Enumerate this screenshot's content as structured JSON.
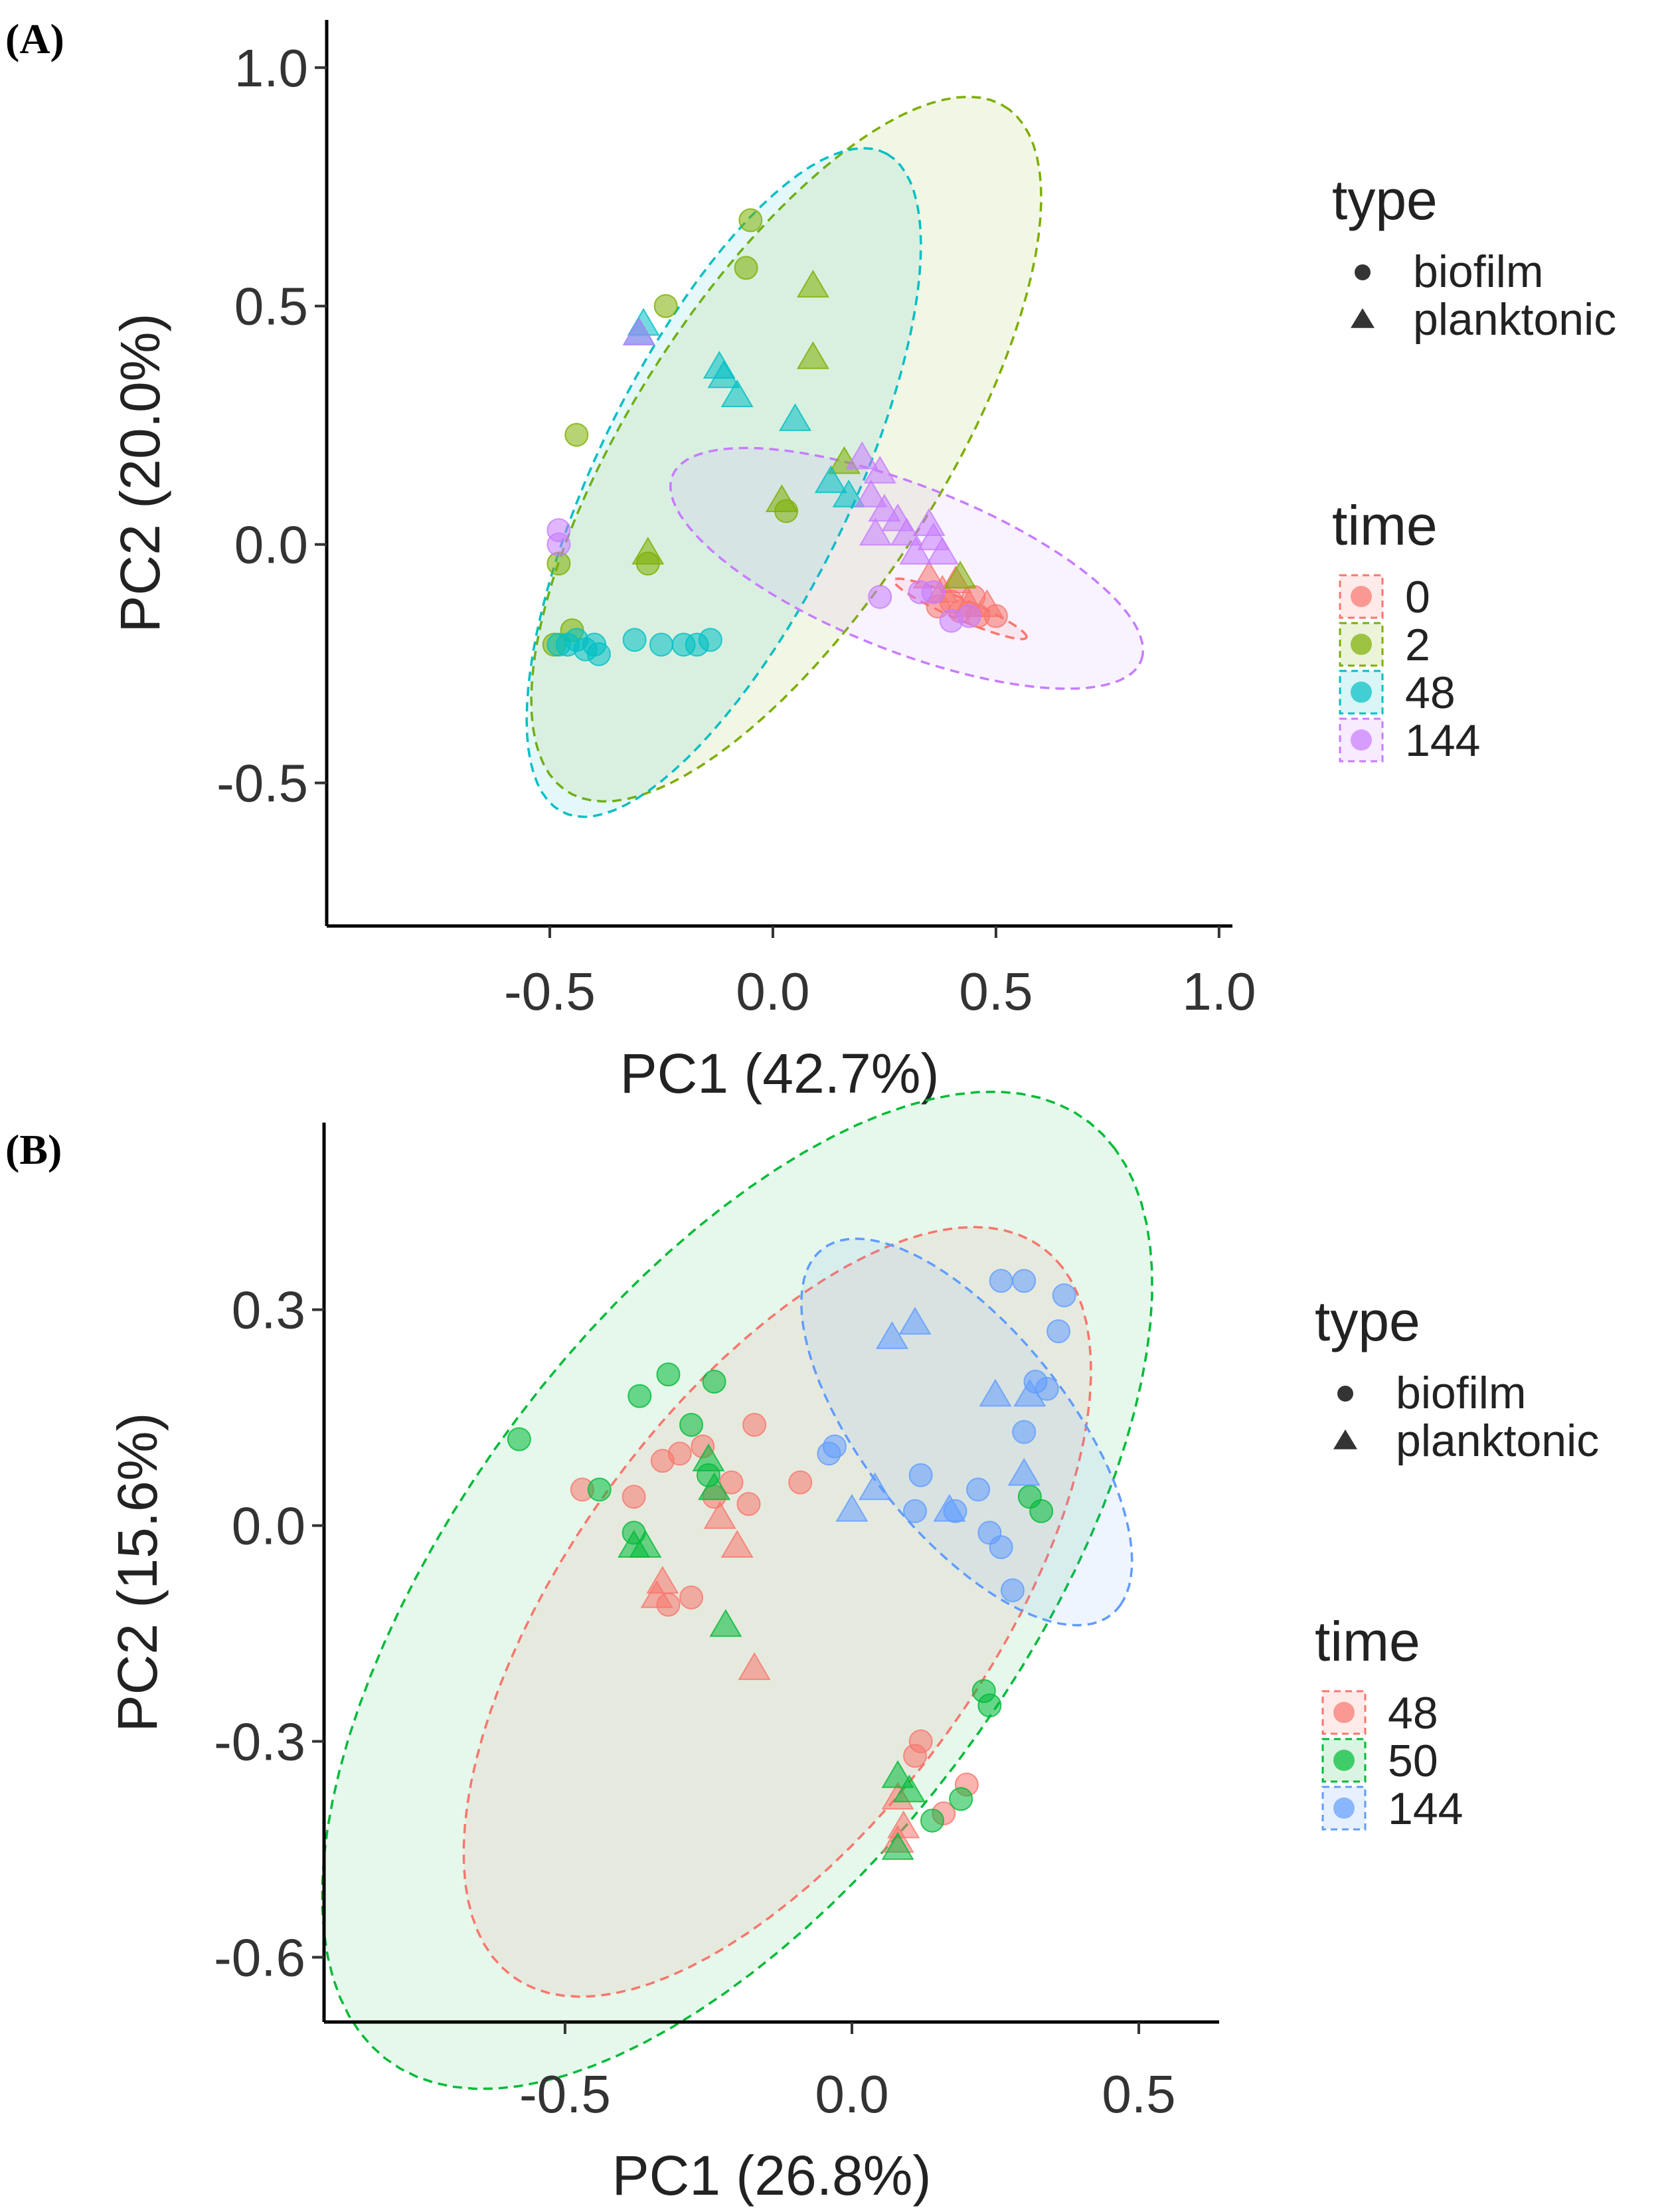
{
  "colors": {
    "red": "#F8766D",
    "olive": "#7CAE00",
    "teal": "#00BFC4",
    "purple": "#C77CFF",
    "green": "#00BA38",
    "blue": "#619CFF"
  },
  "chart_data": [
    {
      "type": "scatter",
      "panel_label": "(A)",
      "xlabel": "PC1 (42.7%)",
      "ylabel": "PC2 (20.0%)",
      "xlim": [
        -1.0,
        1.03
      ],
      "ylim": [
        -0.8,
        1.1
      ],
      "xticks": [
        -0.5,
        0.0,
        0.5,
        1.0
      ],
      "xtick_labels": [
        "-0.5",
        "0.0",
        "0.5",
        "1.0"
      ],
      "yticks": [
        -0.5,
        0.0,
        0.5,
        1.0
      ],
      "ytick_labels": [
        "-0.5",
        "0.0",
        "0.5",
        "1.0"
      ],
      "legend": {
        "type_title": "type",
        "type_entries": [
          {
            "label": "biofilm",
            "shape": "circle"
          },
          {
            "label": "planktonic",
            "shape": "triangle"
          }
        ],
        "time_title": "time",
        "time_entries": [
          {
            "label": "0",
            "color": "#F8766D"
          },
          {
            "label": "2",
            "color": "#7CAE00"
          },
          {
            "label": "48",
            "color": "#00BFC4"
          },
          {
            "label": "144",
            "color": "#C77CFF"
          }
        ]
      },
      "ellipses": [
        {
          "group": "2",
          "color": "#7CAE00",
          "cx": 0.03,
          "cy": 0.2,
          "rx": 0.87,
          "ry": 0.34,
          "angle": 55
        },
        {
          "group": "48",
          "color": "#00BFC4",
          "cx": -0.11,
          "cy": 0.13,
          "rx": 0.78,
          "ry": 0.28,
          "angle": 62
        },
        {
          "group": "144",
          "color": "#C77CFF",
          "cx": 0.3,
          "cy": -0.05,
          "rx": 0.56,
          "ry": 0.175,
          "angle": -20
        },
        {
          "group": "0",
          "color": "#F8766D",
          "cx": 0.42,
          "cy": -0.135,
          "rx": 0.16,
          "ry": 0.022,
          "angle": -22
        }
      ],
      "series": [
        {
          "name": "0",
          "color": "#F8766D",
          "points": [
            {
              "x": 0.35,
              "y": -0.07,
              "type": "planktonic"
            },
            {
              "x": 0.38,
              "y": -0.1,
              "type": "planktonic"
            },
            {
              "x": 0.4,
              "y": -0.12,
              "type": "biofilm"
            },
            {
              "x": 0.42,
              "y": -0.14,
              "type": "biofilm"
            },
            {
              "x": 0.44,
              "y": -0.13,
              "type": "planktonic"
            },
            {
              "x": 0.46,
              "y": -0.15,
              "type": "biofilm"
            },
            {
              "x": 0.48,
              "y": -0.13,
              "type": "planktonic"
            },
            {
              "x": 0.37,
              "y": -0.13,
              "type": "biofilm"
            },
            {
              "x": 0.41,
              "y": -0.08,
              "type": "planktonic"
            },
            {
              "x": 0.45,
              "y": -0.11,
              "type": "biofilm"
            },
            {
              "x": 0.5,
              "y": -0.15,
              "type": "biofilm"
            }
          ]
        },
        {
          "name": "2",
          "color": "#7CAE00",
          "points": [
            {
              "x": -0.05,
              "y": 0.68,
              "type": "biofilm"
            },
            {
              "x": -0.06,
              "y": 0.58,
              "type": "biofilm"
            },
            {
              "x": -0.24,
              "y": 0.5,
              "type": "biofilm"
            },
            {
              "x": 0.09,
              "y": 0.54,
              "type": "planktonic"
            },
            {
              "x": 0.09,
              "y": 0.39,
              "type": "planktonic"
            },
            {
              "x": -0.44,
              "y": 0.23,
              "type": "biofilm"
            },
            {
              "x": 0.16,
              "y": 0.17,
              "type": "planktonic"
            },
            {
              "x": 0.02,
              "y": 0.09,
              "type": "planktonic"
            },
            {
              "x": 0.03,
              "y": 0.07,
              "type": "biofilm"
            },
            {
              "x": -0.28,
              "y": -0.02,
              "type": "planktonic"
            },
            {
              "x": -0.28,
              "y": -0.04,
              "type": "biofilm"
            },
            {
              "x": -0.48,
              "y": -0.04,
              "type": "biofilm"
            },
            {
              "x": -0.45,
              "y": -0.18,
              "type": "biofilm"
            },
            {
              "x": -0.49,
              "y": -0.21,
              "type": "biofilm"
            },
            {
              "x": 0.42,
              "y": -0.07,
              "type": "planktonic"
            }
          ]
        },
        {
          "name": "48",
          "color": "#00BFC4",
          "points": [
            {
              "x": -0.29,
              "y": 0.46,
              "type": "planktonic"
            },
            {
              "x": -0.3,
              "y": 0.44,
              "type": "planktonic"
            },
            {
              "x": -0.12,
              "y": 0.37,
              "type": "planktonic"
            },
            {
              "x": -0.11,
              "y": 0.35,
              "type": "planktonic"
            },
            {
              "x": -0.08,
              "y": 0.31,
              "type": "planktonic"
            },
            {
              "x": 0.05,
              "y": 0.26,
              "type": "planktonic"
            },
            {
              "x": 0.13,
              "y": 0.13,
              "type": "planktonic"
            },
            {
              "x": 0.17,
              "y": 0.1,
              "type": "planktonic"
            },
            {
              "x": -0.48,
              "y": -0.21,
              "type": "biofilm"
            },
            {
              "x": -0.46,
              "y": -0.21,
              "type": "biofilm"
            },
            {
              "x": -0.44,
              "y": -0.2,
              "type": "biofilm"
            },
            {
              "x": -0.42,
              "y": -0.22,
              "type": "biofilm"
            },
            {
              "x": -0.4,
              "y": -0.21,
              "type": "biofilm"
            },
            {
              "x": -0.39,
              "y": -0.23,
              "type": "biofilm"
            },
            {
              "x": -0.31,
              "y": -0.2,
              "type": "biofilm"
            },
            {
              "x": -0.25,
              "y": -0.21,
              "type": "biofilm"
            },
            {
              "x": -0.2,
              "y": -0.21,
              "type": "biofilm"
            },
            {
              "x": -0.17,
              "y": -0.21,
              "type": "biofilm"
            },
            {
              "x": -0.14,
              "y": -0.2,
              "type": "biofilm"
            }
          ]
        },
        {
          "name": "144",
          "color": "#C77CFF",
          "points": [
            {
              "x": -0.3,
              "y": 0.44,
              "type": "planktonic"
            },
            {
              "x": 0.2,
              "y": 0.18,
              "type": "planktonic"
            },
            {
              "x": 0.24,
              "y": 0.15,
              "type": "planktonic"
            },
            {
              "x": 0.22,
              "y": 0.1,
              "type": "planktonic"
            },
            {
              "x": 0.25,
              "y": 0.07,
              "type": "planktonic"
            },
            {
              "x": 0.23,
              "y": 0.02,
              "type": "planktonic"
            },
            {
              "x": 0.28,
              "y": 0.05,
              "type": "planktonic"
            },
            {
              "x": 0.3,
              "y": 0.02,
              "type": "planktonic"
            },
            {
              "x": 0.35,
              "y": 0.04,
              "type": "planktonic"
            },
            {
              "x": 0.36,
              "y": 0.01,
              "type": "planktonic"
            },
            {
              "x": 0.32,
              "y": -0.02,
              "type": "planktonic"
            },
            {
              "x": 0.38,
              "y": -0.02,
              "type": "planktonic"
            },
            {
              "x": -0.48,
              "y": 0.03,
              "type": "biofilm"
            },
            {
              "x": -0.48,
              "y": 0.0,
              "type": "biofilm"
            },
            {
              "x": 0.24,
              "y": -0.11,
              "type": "biofilm"
            },
            {
              "x": 0.33,
              "y": -0.1,
              "type": "biofilm"
            },
            {
              "x": 0.36,
              "y": -0.1,
              "type": "biofilm"
            },
            {
              "x": 0.4,
              "y": -0.16,
              "type": "biofilm"
            },
            {
              "x": 0.44,
              "y": -0.15,
              "type": "biofilm"
            }
          ]
        }
      ]
    },
    {
      "type": "scatter",
      "panel_label": "(B)",
      "xlabel": "PC1 (26.8%)",
      "ylabel": "PC2 (15.6%)",
      "xlim": [
        -0.92,
        0.64
      ],
      "ylim": [
        -0.69,
        0.56
      ],
      "xticks": [
        -0.5,
        0.0,
        0.5
      ],
      "xtick_labels": [
        "-0.5",
        "0.0",
        "0.5"
      ],
      "yticks": [
        -0.6,
        -0.3,
        0.0,
        0.3
      ],
      "ytick_labels": [
        "-0.6",
        "-0.3",
        "0.0",
        "0.3"
      ],
      "legend": {
        "type_title": "type",
        "type_entries": [
          {
            "label": "biofilm",
            "shape": "circle"
          },
          {
            "label": "planktonic",
            "shape": "triangle"
          }
        ],
        "time_title": "time",
        "time_entries": [
          {
            "label": "48",
            "color": "#F8766D"
          },
          {
            "label": "50",
            "color": "#00BA38"
          },
          {
            "label": "144",
            "color": "#619CFF"
          }
        ]
      },
      "ellipses": [
        {
          "group": "50",
          "color": "#00BA38",
          "cx": -0.2,
          "cy": -0.09,
          "rx": 0.9,
          "ry": 0.44,
          "angle": 43
        },
        {
          "group": "48",
          "color": "#F8766D",
          "cx": -0.13,
          "cy": -0.12,
          "rx": 0.69,
          "ry": 0.33,
          "angle": 44
        },
        {
          "group": "144",
          "color": "#619CFF",
          "cx": 0.2,
          "cy": 0.13,
          "rx": 0.36,
          "ry": 0.16,
          "angle": -42
        }
      ],
      "series": [
        {
          "name": "48",
          "color": "#F8766D",
          "points": [
            {
              "x": -0.17,
              "y": 0.14,
              "type": "biofilm"
            },
            {
              "x": -0.26,
              "y": 0.11,
              "type": "biofilm"
            },
            {
              "x": -0.3,
              "y": 0.1,
              "type": "biofilm"
            },
            {
              "x": -0.33,
              "y": 0.09,
              "type": "biofilm"
            },
            {
              "x": -0.21,
              "y": 0.06,
              "type": "biofilm"
            },
            {
              "x": -0.24,
              "y": 0.04,
              "type": "biofilm"
            },
            {
              "x": -0.47,
              "y": 0.05,
              "type": "biofilm"
            },
            {
              "x": -0.38,
              "y": 0.04,
              "type": "biofilm"
            },
            {
              "x": -0.18,
              "y": 0.03,
              "type": "biofilm"
            },
            {
              "x": -0.09,
              "y": 0.06,
              "type": "biofilm"
            },
            {
              "x": -0.23,
              "y": 0.01,
              "type": "planktonic"
            },
            {
              "x": -0.2,
              "y": -0.03,
              "type": "planktonic"
            },
            {
              "x": -0.33,
              "y": -0.08,
              "type": "planktonic"
            },
            {
              "x": -0.34,
              "y": -0.1,
              "type": "planktonic"
            },
            {
              "x": -0.32,
              "y": -0.11,
              "type": "biofilm"
            },
            {
              "x": -0.28,
              "y": -0.1,
              "type": "biofilm"
            },
            {
              "x": -0.17,
              "y": -0.2,
              "type": "planktonic"
            },
            {
              "x": 0.11,
              "y": -0.32,
              "type": "biofilm"
            },
            {
              "x": 0.12,
              "y": -0.3,
              "type": "biofilm"
            },
            {
              "x": 0.2,
              "y": -0.36,
              "type": "biofilm"
            },
            {
              "x": 0.08,
              "y": -0.38,
              "type": "planktonic"
            },
            {
              "x": 0.09,
              "y": -0.42,
              "type": "planktonic"
            },
            {
              "x": 0.16,
              "y": -0.4,
              "type": "biofilm"
            },
            {
              "x": 0.08,
              "y": -0.44,
              "type": "planktonic"
            }
          ]
        },
        {
          "name": "50",
          "color": "#00BA38",
          "points": [
            {
              "x": -0.32,
              "y": 0.21,
              "type": "biofilm"
            },
            {
              "x": -0.24,
              "y": 0.2,
              "type": "biofilm"
            },
            {
              "x": -0.37,
              "y": 0.18,
              "type": "biofilm"
            },
            {
              "x": -0.28,
              "y": 0.14,
              "type": "biofilm"
            },
            {
              "x": -0.58,
              "y": 0.12,
              "type": "biofilm"
            },
            {
              "x": -0.25,
              "y": 0.09,
              "type": "planktonic"
            },
            {
              "x": -0.25,
              "y": 0.07,
              "type": "biofilm"
            },
            {
              "x": -0.24,
              "y": 0.05,
              "type": "planktonic"
            },
            {
              "x": -0.44,
              "y": 0.05,
              "type": "biofilm"
            },
            {
              "x": -0.38,
              "y": -0.01,
              "type": "biofilm"
            },
            {
              "x": -0.38,
              "y": -0.03,
              "type": "planktonic"
            },
            {
              "x": -0.36,
              "y": -0.03,
              "type": "planktonic"
            },
            {
              "x": -0.22,
              "y": -0.14,
              "type": "planktonic"
            },
            {
              "x": 0.31,
              "y": 0.04,
              "type": "biofilm"
            },
            {
              "x": 0.33,
              "y": 0.02,
              "type": "biofilm"
            },
            {
              "x": 0.23,
              "y": -0.23,
              "type": "biofilm"
            },
            {
              "x": 0.24,
              "y": -0.25,
              "type": "biofilm"
            },
            {
              "x": 0.08,
              "y": -0.35,
              "type": "planktonic"
            },
            {
              "x": 0.1,
              "y": -0.37,
              "type": "planktonic"
            },
            {
              "x": 0.19,
              "y": -0.38,
              "type": "biofilm"
            },
            {
              "x": 0.14,
              "y": -0.41,
              "type": "biofilm"
            },
            {
              "x": 0.08,
              "y": -0.45,
              "type": "planktonic"
            }
          ]
        },
        {
          "name": "144",
          "color": "#619CFF",
          "points": [
            {
              "x": 0.26,
              "y": 0.34,
              "type": "biofilm"
            },
            {
              "x": 0.3,
              "y": 0.34,
              "type": "biofilm"
            },
            {
              "x": 0.37,
              "y": 0.32,
              "type": "biofilm"
            },
            {
              "x": 0.36,
              "y": 0.27,
              "type": "biofilm"
            },
            {
              "x": 0.11,
              "y": 0.28,
              "type": "planktonic"
            },
            {
              "x": 0.07,
              "y": 0.26,
              "type": "planktonic"
            },
            {
              "x": 0.32,
              "y": 0.2,
              "type": "biofilm"
            },
            {
              "x": 0.34,
              "y": 0.19,
              "type": "biofilm"
            },
            {
              "x": 0.25,
              "y": 0.18,
              "type": "planktonic"
            },
            {
              "x": 0.31,
              "y": 0.18,
              "type": "planktonic"
            },
            {
              "x": 0.3,
              "y": 0.13,
              "type": "biofilm"
            },
            {
              "x": 0.3,
              "y": 0.07,
              "type": "planktonic"
            },
            {
              "x": -0.03,
              "y": 0.11,
              "type": "biofilm"
            },
            {
              "x": -0.04,
              "y": 0.1,
              "type": "biofilm"
            },
            {
              "x": 0.12,
              "y": 0.07,
              "type": "biofilm"
            },
            {
              "x": 0.04,
              "y": 0.05,
              "type": "planktonic"
            },
            {
              "x": 0.22,
              "y": 0.05,
              "type": "biofilm"
            },
            {
              "x": 0.0,
              "y": 0.02,
              "type": "planktonic"
            },
            {
              "x": 0.11,
              "y": 0.02,
              "type": "biofilm"
            },
            {
              "x": 0.17,
              "y": 0.02,
              "type": "planktonic"
            },
            {
              "x": 0.18,
              "y": 0.02,
              "type": "biofilm"
            },
            {
              "x": 0.26,
              "y": -0.03,
              "type": "biofilm"
            },
            {
              "x": 0.24,
              "y": -0.01,
              "type": "biofilm"
            },
            {
              "x": 0.28,
              "y": -0.09,
              "type": "biofilm"
            }
          ]
        }
      ]
    }
  ]
}
